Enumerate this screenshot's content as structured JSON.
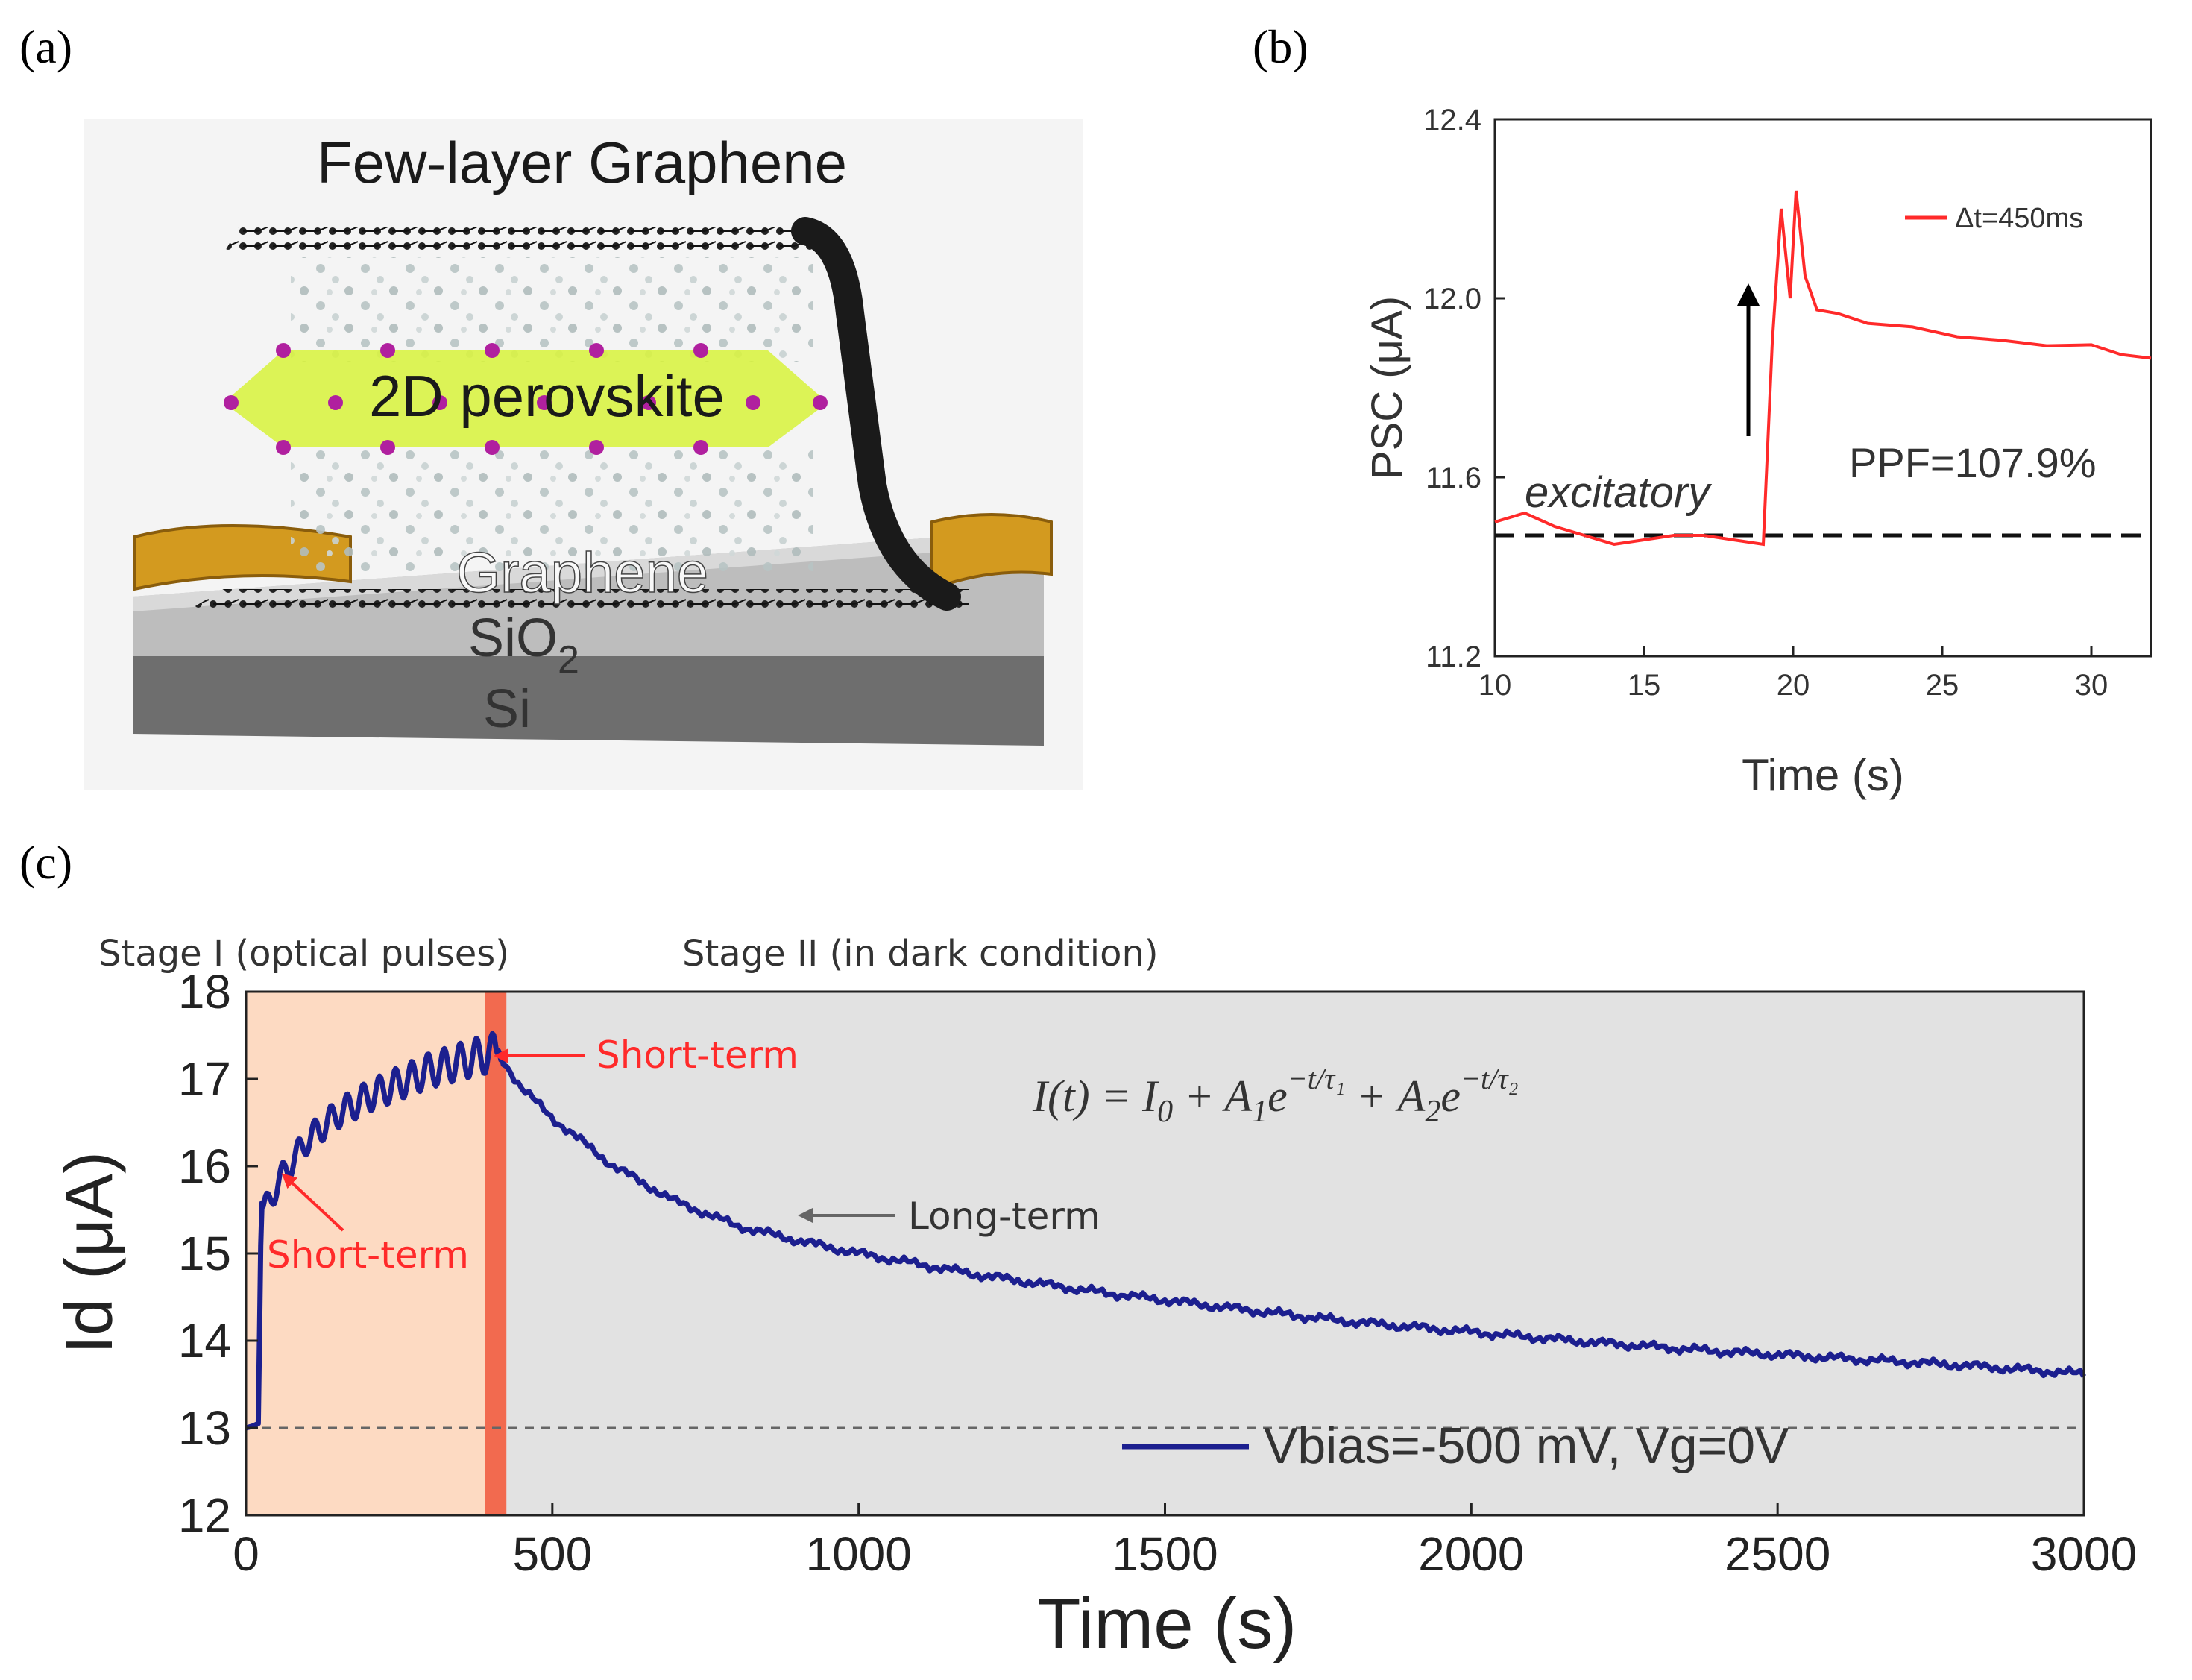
{
  "panel_labels": {
    "a": "(a)",
    "b": "(b)",
    "c": "(c)"
  },
  "panel_a": {
    "labels": [
      "Few-layer Graphene",
      "2D perovskite",
      "Graphene",
      "SiO",
      "2",
      "Si"
    ]
  },
  "colors": {
    "red_trace": "#ff2a2a",
    "blue_trace": "#1c1f8f",
    "stage1_bg": "#fddac2",
    "stage2_bg": "#e2e2e2",
    "pulse_band": "#f26a4f",
    "perovskite_green": "#d7f23a",
    "gold": "#d39a1f"
  },
  "chart_data": [
    {
      "id": "b",
      "type": "line",
      "title": "",
      "xlabel": "Time (s)",
      "ylabel": "PSC (μA)",
      "xlim": [
        10,
        32
      ],
      "ylim": [
        11.2,
        12.4
      ],
      "xticks": [
        10,
        15,
        20,
        25,
        30
      ],
      "yticks": [
        11.2,
        11.6,
        12.0,
        12.4
      ],
      "ytick_labels": [
        "11.2",
        "11.6",
        "12.0",
        "12.4"
      ],
      "legend": "Δt=450ms",
      "baseline": 11.47,
      "annotations": {
        "excitatory": "excitatory",
        "ppf": "PPF=107.9%"
      },
      "series": [
        {
          "name": "Δt=450ms",
          "x": [
            10,
            11,
            12,
            13,
            14,
            15,
            16,
            17,
            18,
            19,
            19.3,
            19.6,
            19.9,
            20.1,
            20.4,
            20.8,
            21.5,
            22.5,
            24,
            25.5,
            27,
            28.5,
            30,
            31,
            32
          ],
          "y": [
            11.5,
            11.52,
            11.49,
            11.47,
            11.45,
            11.46,
            11.47,
            11.47,
            11.46,
            11.45,
            11.9,
            12.2,
            12.0,
            12.24,
            12.05,
            11.98,
            11.96,
            11.95,
            11.93,
            11.92,
            11.9,
            11.9,
            11.89,
            11.88,
            11.86
          ]
        }
      ]
    },
    {
      "id": "c",
      "type": "line",
      "title": "",
      "xlabel": "Time (s)",
      "ylabel": "Id (μA)",
      "xlim": [
        0,
        3000
      ],
      "ylim": [
        12,
        18
      ],
      "xticks": [
        0,
        500,
        1000,
        1500,
        2000,
        2500,
        3000
      ],
      "yticks": [
        12,
        13,
        14,
        15,
        16,
        17,
        18
      ],
      "baseline": 13,
      "regions": [
        {
          "name": "Stage I (optical pulses)",
          "x": [
            0,
            400
          ]
        },
        {
          "name": "Stage II (in dark condition)",
          "x": [
            400,
            3000
          ]
        }
      ],
      "pulse_band": [
        390,
        425
      ],
      "equation": "I(t) = I₀ + A₁e^{-t/τ₁} + A₂e^{-t/τ₂}",
      "annotations": [
        "Short-term",
        "Short-term",
        "Long-term"
      ],
      "legend": "Vbias=-500 mV, Vg=0V",
      "series": [
        {
          "name": "Vbias=-500 mV, Vg=0V",
          "x": [
            0,
            10,
            20,
            25,
            30,
            45,
            60,
            80,
            100,
            150,
            200,
            250,
            300,
            350,
            400,
            410,
            450,
            500,
            600,
            700,
            800,
            900,
            1000,
            1200,
            1400,
            1600,
            1800,
            2000,
            2200,
            2400,
            2600,
            2800,
            3000
          ],
          "y": [
            13,
            13.02,
            13.05,
            15.6,
            15.5,
            15.7,
            15.9,
            16.1,
            16.3,
            16.6,
            16.8,
            16.95,
            17.1,
            17.2,
            17.3,
            17.3,
            16.9,
            16.55,
            16.0,
            15.6,
            15.32,
            15.15,
            15.0,
            14.75,
            14.55,
            14.38,
            14.22,
            14.1,
            13.98,
            13.88,
            13.8,
            13.72,
            13.62
          ]
        }
      ]
    }
  ]
}
